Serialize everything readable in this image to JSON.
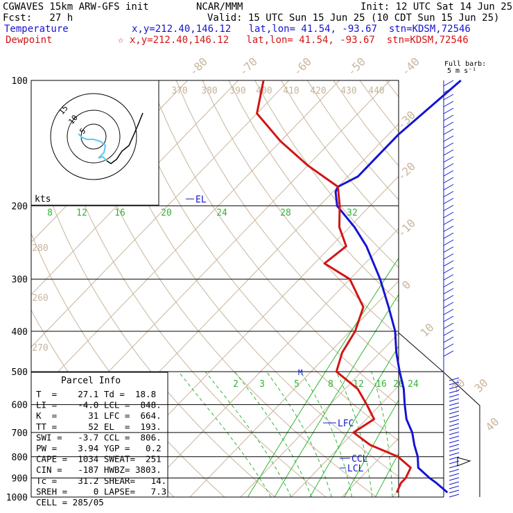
{
  "header": {
    "line1_left": "CGWAVES 15km ARW-GFS init",
    "line1_mid": "NCAR/MMM",
    "line1_right": "Init: 12 UTC Sat 14 Jun 25",
    "line2_left": "Fcst:   27 h",
    "line2_right": "Valid: 15 UTC Sun 15 Jun 25 (10 CDT Sun 15 Jun 25)",
    "temp_label": "Temperature",
    "temp_info": "x,y=212.40,146.12   lat,lon= 41.54, -93.67  stn=KDSM,72546",
    "dew_label": "Dewpoint",
    "dew_info": "☆ x,y=212.40,146.12   lat,lon= 41.54, -93.67  stn=KDSM,72546"
  },
  "barb_legend": {
    "line1": "Full barb:",
    "line2": "5 m s⁻¹"
  },
  "colors": {
    "temperature": "#1414d2",
    "dewpoint": "#d21414",
    "isotherm": "#c8b49b",
    "mixing_ratio": "#32b432"
  },
  "parcel_info": {
    "title": "Parcel Info",
    "rows": [
      [
        "T  =    27.1 Td =  18.8"
      ],
      [
        "LI =    -4.0 LCL =  848."
      ],
      [
        "K  =      31 LFC =  664."
      ],
      [
        "TT =      52 EL  =  193."
      ],
      [
        "SWI =   -3.7 CCL =  806."
      ],
      [
        "PW =    3.94 YGP =   0.2"
      ],
      [
        "CAPE =  1034 SWEAT=  251"
      ],
      [
        "CIN =   -187 HWBZ= 3803."
      ],
      [
        "Tc =    31.2 SHEAR=   14."
      ],
      [
        "SREH =     0 LAPSE=   7.3"
      ],
      [
        "CELL = 285/05"
      ]
    ]
  },
  "hodograph": {
    "unit_label": "kts",
    "ring_labels": [
      "15",
      "10",
      "5"
    ]
  },
  "chart_data": {
    "type": "line",
    "title": "",
    "y_scale": "log-pressure",
    "ylim": [
      1000,
      100
    ],
    "pressure_labels": [
      "100",
      "200",
      "300",
      "400",
      "500",
      "600",
      "700",
      "800",
      "900",
      "1000"
    ],
    "pressure_levels": [
      100,
      200,
      300,
      400,
      500,
      600,
      700,
      800,
      900,
      1000
    ],
    "isotherm_labels": [
      "-80",
      "-70",
      "-60",
      "-50",
      "-40",
      "-30",
      "-20",
      "-10",
      "0",
      "10",
      "20",
      "30",
      "40"
    ],
    "theta_labels": [
      "370",
      "380",
      "390",
      "400",
      "410",
      "420",
      "430",
      "440",
      "280",
      "260",
      "270"
    ],
    "mixing_ratio_labels_upper": [
      "8",
      "12",
      "16",
      "20",
      "24",
      "28",
      "32"
    ],
    "mixing_ratio_labels_lower": [
      "2",
      "3",
      "5",
      "8",
      "12",
      "16",
      "20",
      "24"
    ],
    "level_markers": [
      "EL",
      "LFC",
      "CCL",
      "LCL",
      "M"
    ],
    "series": [
      {
        "name": "Temperature",
        "color": "#1414d2",
        "points": [
          [
            975,
            30
          ],
          [
            925,
            26
          ],
          [
            900,
            23.7
          ],
          [
            850,
            19.5
          ],
          [
            800,
            17.3
          ],
          [
            750,
            14.4
          ],
          [
            700,
            11.6
          ],
          [
            650,
            7.9
          ],
          [
            600,
            4.8
          ],
          [
            550,
            1.6
          ],
          [
            500,
            -2.5
          ],
          [
            450,
            -6.8
          ],
          [
            400,
            -11.1
          ],
          [
            350,
            -17
          ],
          [
            300,
            -24
          ],
          [
            250,
            -33
          ],
          [
            225,
            -39
          ],
          [
            200,
            -46.5
          ],
          [
            185,
            -49.5
          ],
          [
            180,
            -50
          ],
          [
            170,
            -48
          ],
          [
            150,
            -48
          ],
          [
            135,
            -48
          ],
          [
            100,
            -46
          ]
        ]
      },
      {
        "name": "Dewpoint",
        "color": "#d21414",
        "points": [
          [
            975,
            20
          ],
          [
            925,
            19
          ],
          [
            900,
            19
          ],
          [
            850,
            18
          ],
          [
            800,
            13.4
          ],
          [
            750,
            5.7
          ],
          [
            700,
            0
          ],
          [
            650,
            1.5
          ],
          [
            600,
            -2.7
          ],
          [
            550,
            -7.5
          ],
          [
            500,
            -15
          ],
          [
            450,
            -17.5
          ],
          [
            400,
            -19
          ],
          [
            350,
            -22
          ],
          [
            300,
            -30
          ],
          [
            275,
            -38
          ],
          [
            250,
            -37
          ],
          [
            225,
            -42
          ],
          [
            200,
            -46
          ],
          [
            180,
            -50
          ],
          [
            160,
            -60
          ],
          [
            140,
            -70
          ],
          [
            120,
            -80
          ],
          [
            100,
            -85
          ]
        ]
      }
    ],
    "wind_barbs": "present"
  }
}
